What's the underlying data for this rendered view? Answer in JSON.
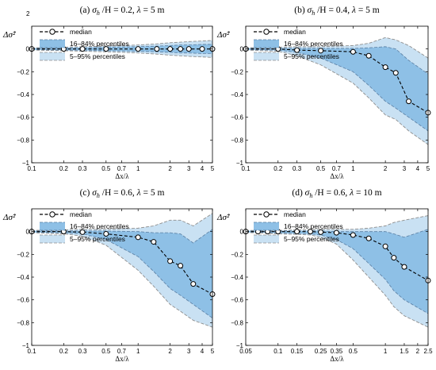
{
  "colors": {
    "band_outer": "#c9e1f3",
    "band_outer_edge": "#8e8e8e",
    "band_inner": "#8ec0e6",
    "band_inner_edge": "#5b7fa3",
    "median_line": "#000000",
    "marker_fill": "#ffffff",
    "axis": "#000000"
  },
  "corner_label": "2",
  "legend": {
    "median": "median",
    "inner": "16–84% percentiles",
    "outer": "5–95% percentiles"
  },
  "chart_data": [
    {
      "id": "a",
      "type": "area",
      "title": "(a)  σh /H = 0.2, λ = 5 m",
      "title_parts": {
        "prefix": "(a)",
        "sigma": "σ",
        "sub": "h",
        "middle": "/H = 0.2, ",
        "lambda": "λ",
        "suffix": " = 5 m"
      },
      "ylabel": "Δσ̂²",
      "xlabel": "Δx/λ",
      "xscale": "log",
      "xlim": [
        0.1,
        5
      ],
      "ylim": [
        -1,
        0.2
      ],
      "xticks": [
        0.1,
        0.2,
        0.3,
        0.5,
        0.7,
        1,
        2,
        3,
        4,
        5
      ],
      "xtick_labels": [
        "0.1",
        "0.2",
        "0.3",
        "0.5",
        "0.7",
        "1",
        "2",
        "3",
        "4",
        "5"
      ],
      "yticks": [
        -1,
        -0.8,
        -0.6,
        -0.4,
        -0.2,
        0
      ],
      "ytick_labels": [
        "−1",
        "−0.8",
        "−0.6",
        "−0.4",
        "−0.2",
        "0"
      ],
      "x": [
        0.1,
        0.2,
        0.3,
        0.5,
        1,
        1.5,
        2,
        2.5,
        3,
        4,
        5
      ],
      "median": [
        0,
        0,
        0,
        0,
        0,
        0,
        0,
        0,
        0,
        0,
        0
      ],
      "marker_x": [
        0.1,
        0.2,
        0.3,
        0.5,
        1,
        1.5,
        2,
        2.5,
        3,
        4,
        5
      ],
      "marker_y": [
        0,
        0,
        0,
        0,
        0,
        0,
        0,
        0,
        0,
        0,
        0
      ],
      "p16": [
        -0.005,
        -0.01,
        -0.01,
        -0.015,
        -0.02,
        -0.025,
        -0.03,
        -0.035,
        -0.035,
        -0.04,
        -0.04
      ],
      "p84": [
        0.005,
        0.01,
        0.01,
        0.015,
        0.02,
        0.025,
        0.03,
        0.035,
        0.035,
        0.04,
        0.04
      ],
      "p05": [
        -0.01,
        -0.015,
        -0.02,
        -0.025,
        -0.035,
        -0.045,
        -0.055,
        -0.06,
        -0.065,
        -0.07,
        -0.075
      ],
      "p95": [
        0.01,
        0.015,
        0.02,
        0.025,
        0.035,
        0.045,
        0.055,
        0.06,
        0.065,
        0.07,
        0.075
      ]
    },
    {
      "id": "b",
      "type": "area",
      "title": "(b)  σh /H = 0.4, λ = 5 m",
      "title_parts": {
        "prefix": "(b)",
        "sigma": "σ",
        "sub": "h",
        "middle": "/H = 0.4, ",
        "lambda": "λ",
        "suffix": " = 5 m"
      },
      "ylabel": "Δσ̂²",
      "xlabel": "Δx/λ",
      "xscale": "log",
      "xlim": [
        0.1,
        5
      ],
      "ylim": [
        -1,
        0.2
      ],
      "xticks": [
        0.1,
        0.2,
        0.3,
        0.5,
        0.7,
        1,
        2,
        3,
        4,
        5
      ],
      "xtick_labels": [
        "0.1",
        "0.2",
        "0.3",
        "0.5",
        "0.7",
        "1",
        "2",
        "3",
        "4",
        "5"
      ],
      "yticks": [
        -1,
        -0.8,
        -0.6,
        -0.4,
        -0.2,
        0
      ],
      "ytick_labels": [
        "−1",
        "−0.8",
        "−0.6",
        "−0.4",
        "−0.2",
        "0"
      ],
      "x": [
        0.1,
        0.2,
        0.3,
        0.5,
        1,
        1.4,
        2,
        2.5,
        3.3,
        5
      ],
      "median": [
        0,
        0,
        -0.01,
        -0.015,
        -0.025,
        -0.06,
        -0.16,
        -0.21,
        -0.46,
        -0.56
      ],
      "marker_x": [
        0.1,
        0.2,
        0.3,
        0.5,
        1,
        1.4,
        2,
        2.5,
        3.3,
        5
      ],
      "marker_y": [
        0,
        0,
        -0.01,
        -0.015,
        -0.025,
        -0.06,
        -0.16,
        -0.21,
        -0.46,
        -0.56
      ],
      "p16": [
        -0.005,
        -0.01,
        -0.03,
        -0.08,
        -0.2,
        -0.32,
        -0.46,
        -0.52,
        -0.6,
        -0.72
      ],
      "p84": [
        0.005,
        0.005,
        0.005,
        0.005,
        0.005,
        0.01,
        0.02,
        0.0,
        -0.1,
        -0.22
      ],
      "p05": [
        -0.01,
        -0.02,
        -0.06,
        -0.14,
        -0.3,
        -0.43,
        -0.58,
        -0.62,
        -0.72,
        -0.84
      ],
      "p95": [
        0.01,
        0.015,
        0.02,
        0.02,
        0.03,
        0.05,
        0.1,
        0.08,
        0.03,
        -0.08
      ]
    },
    {
      "id": "c",
      "type": "area",
      "title": "(c)  σh /H = 0.6, λ = 5 m",
      "title_parts": {
        "prefix": "(c)",
        "sigma": "σ",
        "sub": "h",
        "middle": "/H = 0.6, ",
        "lambda": "λ",
        "suffix": " = 5 m"
      },
      "ylabel": "Δσ̂²",
      "xlabel": "Δx/λ",
      "xscale": "log",
      "xlim": [
        0.1,
        5
      ],
      "ylim": [
        -1,
        0.2
      ],
      "xticks": [
        0.1,
        0.2,
        0.3,
        0.5,
        0.7,
        1,
        2,
        3,
        4,
        5
      ],
      "xtick_labels": [
        "0.1",
        "0.2",
        "0.3",
        "0.5",
        "0.7",
        "1",
        "2",
        "3",
        "4",
        "5"
      ],
      "yticks": [
        -1,
        -0.8,
        -0.6,
        -0.4,
        -0.2,
        0
      ],
      "ytick_labels": [
        "−1",
        "−0.8",
        "−0.6",
        "−0.4",
        "−0.2",
        "0"
      ],
      "x": [
        0.1,
        0.2,
        0.3,
        0.5,
        1,
        1.4,
        2,
        2.5,
        3.3,
        5
      ],
      "median": [
        0,
        0,
        -0.005,
        -0.02,
        -0.05,
        -0.09,
        -0.26,
        -0.3,
        -0.46,
        -0.55
      ],
      "marker_x": [
        0.1,
        0.2,
        0.3,
        0.5,
        1,
        1.4,
        2,
        2.5,
        3.3,
        5
      ],
      "marker_y": [
        0,
        0,
        -0.005,
        -0.02,
        -0.05,
        -0.09,
        -0.26,
        -0.3,
        -0.46,
        -0.55
      ],
      "p16": [
        -0.005,
        -0.01,
        -0.02,
        -0.07,
        -0.22,
        -0.35,
        -0.5,
        -0.56,
        -0.64,
        -0.76
      ],
      "p84": [
        0.005,
        0.005,
        0.005,
        0.005,
        0.0,
        -0.01,
        -0.01,
        -0.02,
        -0.1,
        0.02
      ],
      "p05": [
        -0.01,
        -0.02,
        -0.04,
        -0.12,
        -0.34,
        -0.48,
        -0.64,
        -0.7,
        -0.78,
        -0.84
      ],
      "p95": [
        0.01,
        0.015,
        0.02,
        0.02,
        0.03,
        0.05,
        0.1,
        0.1,
        0.05,
        0.16
      ]
    },
    {
      "id": "d",
      "type": "area",
      "title": "(d)  σh /H = 0.6, λ = 10 m",
      "title_parts": {
        "prefix": "(d)",
        "sigma": "σ",
        "sub": "h",
        "middle": "/H = 0.6, ",
        "lambda": "λ",
        "suffix": " = 10 m"
      },
      "ylabel": "Δσ̂²",
      "xlabel": "Δx/λ",
      "xscale": "log",
      "xlim": [
        0.05,
        2.5
      ],
      "ylim": [
        -1,
        0.2
      ],
      "xticks": [
        0.05,
        0.1,
        0.15,
        0.25,
        0.35,
        0.5,
        1,
        1.5,
        2,
        2.5
      ],
      "xtick_labels": [
        "0.05",
        "0.1",
        "0.15",
        "0.25",
        "0.35",
        "0.5",
        "1",
        "1.5",
        "2",
        "2.5"
      ],
      "yticks": [
        -1,
        -0.8,
        -0.6,
        -0.4,
        -0.2,
        0
      ],
      "ytick_labels": [
        "−1",
        "−0.8",
        "−0.6",
        "−0.4",
        "−0.2",
        "0"
      ],
      "x": [
        0.05,
        0.065,
        0.08,
        0.1,
        0.15,
        0.2,
        0.25,
        0.35,
        0.5,
        0.7,
        1,
        1.2,
        1.5,
        2.5
      ],
      "median": [
        0,
        0,
        0,
        0,
        0,
        0,
        -0.005,
        -0.01,
        -0.03,
        -0.06,
        -0.13,
        -0.23,
        -0.31,
        -0.43
      ],
      "marker_x": [
        0.05,
        0.065,
        0.08,
        0.1,
        0.15,
        0.2,
        0.25,
        0.35,
        0.5,
        0.7,
        1,
        1.2,
        1.5,
        2.5
      ],
      "marker_y": [
        0,
        0,
        0,
        0,
        0,
        0,
        -0.005,
        -0.01,
        -0.03,
        -0.06,
        -0.13,
        -0.23,
        -0.31,
        -0.43
      ],
      "p16": [
        -0.005,
        -0.005,
        -0.01,
        -0.01,
        -0.015,
        -0.02,
        -0.03,
        -0.07,
        -0.15,
        -0.28,
        -0.42,
        -0.52,
        -0.6,
        -0.72
      ],
      "p84": [
        0.005,
        0.005,
        0.005,
        0.005,
        0.005,
        0.005,
        0.005,
        0.0,
        0.0,
        0.0,
        0.0,
        -0.02,
        -0.05,
        0.02
      ],
      "p05": [
        -0.01,
        -0.01,
        -0.015,
        -0.02,
        -0.025,
        -0.03,
        -0.05,
        -0.11,
        -0.25,
        -0.4,
        -0.56,
        -0.66,
        -0.74,
        -0.84
      ],
      "p95": [
        0.01,
        0.01,
        0.01,
        0.01,
        0.015,
        0.015,
        0.02,
        0.02,
        0.02,
        0.03,
        0.05,
        0.08,
        0.1,
        0.14
      ]
    }
  ]
}
